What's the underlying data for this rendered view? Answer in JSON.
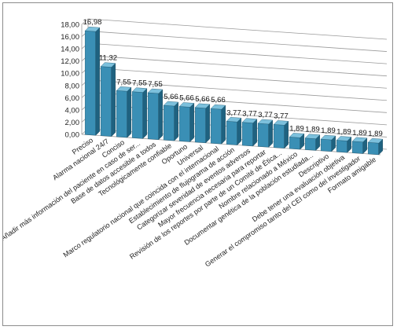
{
  "chart_data": {
    "type": "bar",
    "style": "3d-column",
    "categories": [
      "Preciso",
      "Alarma nacional 24/7",
      "Conciso",
      "Añadir más información del paciente en caso de ser...",
      "Base de datos accesible a todos",
      "Tecnológicamente confiable",
      "Oportuno",
      "Universal",
      "Marco regulatorio nacional que coincida con el internacional",
      "Establecimiento de flujograma de acción",
      "Categorizar severidad de eventos adversos",
      "Mayor frecuencia necesaria para reportar",
      "Revisión de los reportes por parte de un Comité de Ética...",
      "Nombre relacionado a México",
      "Documentar genética de la población estudiada...",
      "Descriptivo",
      "Debe tener una evaluación objetiva",
      "Generar el compromiso tanto del CEI como del investigador",
      "Formato amigable"
    ],
    "values": [
      16.98,
      11.32,
      7.55,
      7.55,
      7.55,
      5.66,
      5.66,
      5.66,
      5.66,
      3.77,
      3.77,
      3.77,
      3.77,
      1.89,
      1.89,
      1.89,
      1.89,
      1.89,
      1.89
    ],
    "data_labels": [
      "16,98",
      "11,32",
      "7,55",
      "7,55",
      "7,55",
      "5,66",
      "5,66",
      "5,66",
      "5,66",
      "3,77",
      "3,77",
      "3,77",
      "3,77",
      "1,89",
      "1,89",
      "1,89",
      "1,89",
      "1,89",
      "1,89"
    ],
    "y_ticks": [
      0,
      2,
      4,
      6,
      8,
      10,
      12,
      14,
      16,
      18
    ],
    "y_tick_labels": [
      "0,00",
      "2,00",
      "4,00",
      "6,00",
      "8,00",
      "10,00",
      "12,00",
      "14,00",
      "16,00",
      "18,00"
    ],
    "ylim": [
      0,
      18
    ],
    "grid": true,
    "legend": "none",
    "title": "",
    "xlabel": "",
    "ylabel": "",
    "colors": {
      "bar_front": "#3a8fb5",
      "bar_side": "#1f6280",
      "bar_top": "#7cc0dc",
      "grid": "#9a9a9a",
      "wall": "#ffffff"
    }
  }
}
